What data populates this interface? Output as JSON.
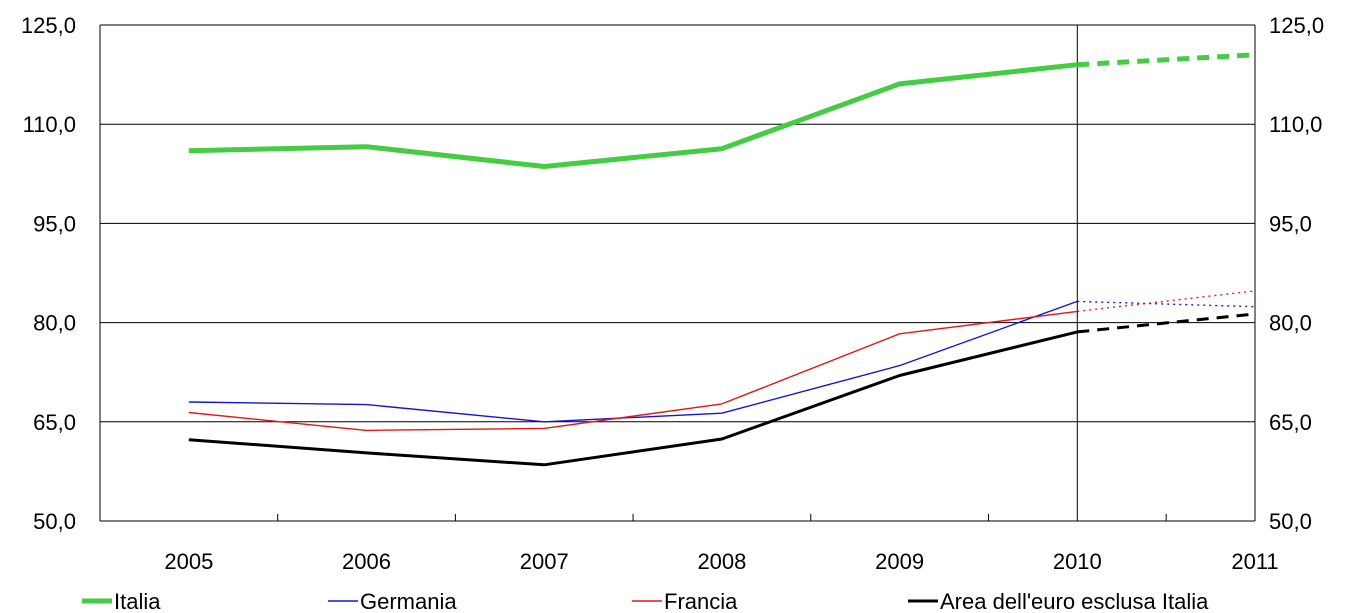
{
  "chart_data": {
    "type": "line",
    "title": "",
    "xlabel": "",
    "ylabel": "",
    "categories": [
      "2005",
      "2006",
      "2007",
      "2008",
      "2009",
      "2010",
      "2011"
    ],
    "ylim": [
      50,
      125
    ],
    "yticks": [
      50,
      65,
      80,
      95,
      110,
      125
    ],
    "ytick_labels": [
      "50,0",
      "65,0",
      "80,0",
      "95,0",
      "110,0",
      "125,0"
    ],
    "y_axes": [
      "left",
      "right"
    ],
    "grid": "horizontal",
    "projection_from": "2010",
    "legend_position": "bottom",
    "series": [
      {
        "name": "Italia",
        "color": "#44cc44",
        "style": "thick",
        "values": [
          106.0,
          106.6,
          103.6,
          106.3,
          116.1,
          119.0,
          120.5
        ]
      },
      {
        "name": "Germania",
        "color": "#1515d0",
        "style": "thin",
        "values": [
          68.0,
          67.6,
          65.0,
          66.3,
          73.5,
          83.2,
          82.4
        ]
      },
      {
        "name": "Francia",
        "color": "#e01818",
        "style": "thin",
        "values": [
          66.4,
          63.7,
          64.0,
          67.7,
          78.3,
          81.7,
          84.8
        ]
      },
      {
        "name": "Area dell'euro esclusa Italia",
        "color": "#000000",
        "style": "medium",
        "values": [
          62.3,
          60.3,
          58.5,
          62.4,
          72.0,
          78.6,
          81.3
        ]
      }
    ]
  }
}
